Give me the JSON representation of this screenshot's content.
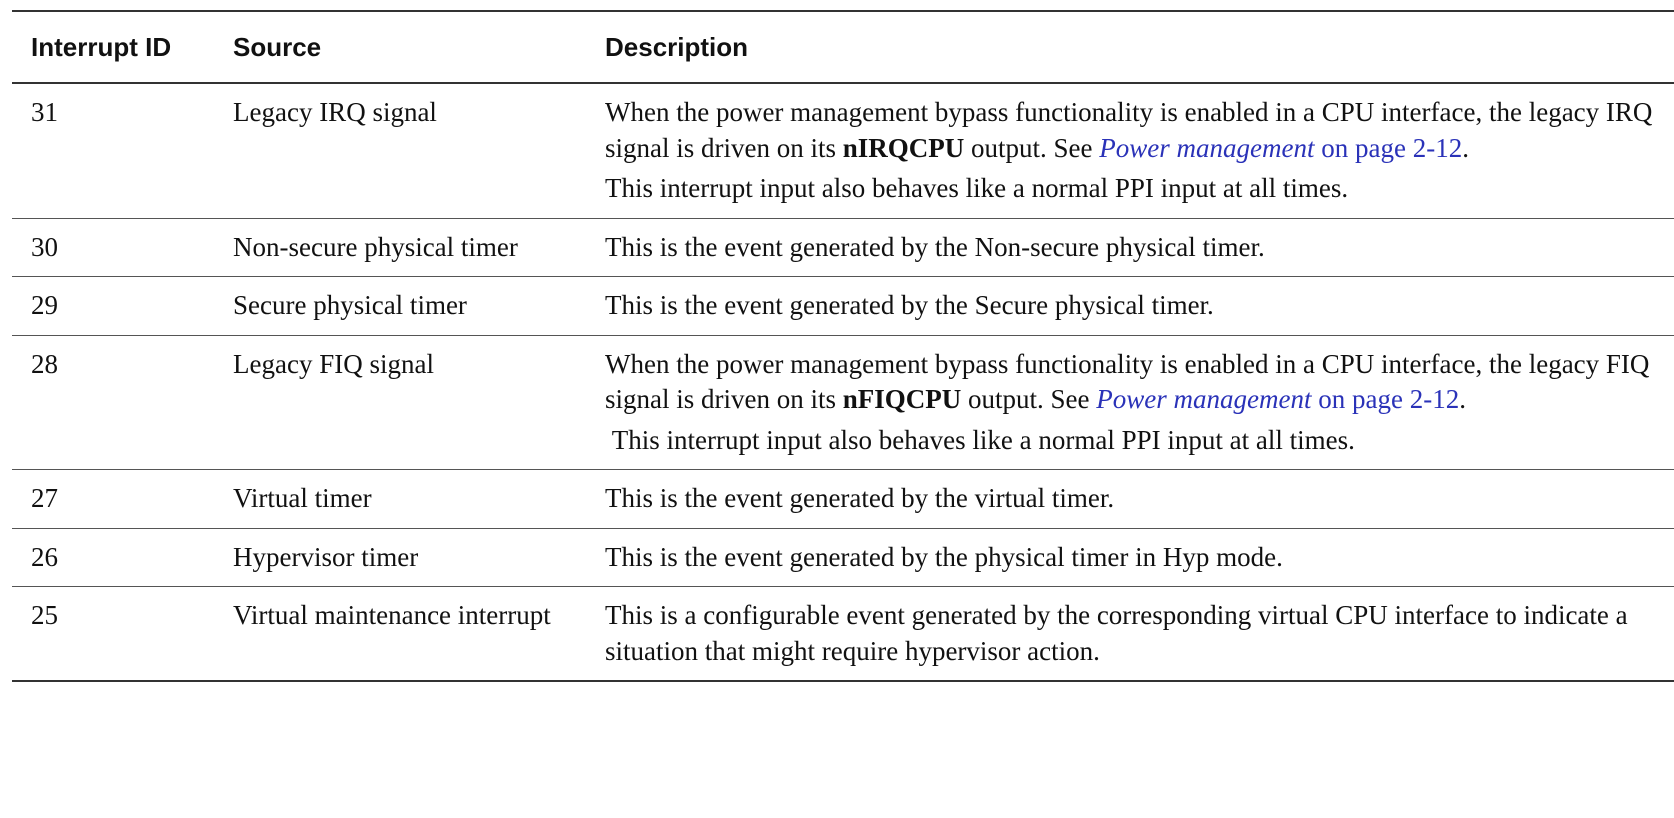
{
  "headers": {
    "id": "Interrupt ID",
    "source": "Source",
    "description": "Description"
  },
  "rows": [
    {
      "id": "31",
      "source": "Legacy IRQ signal",
      "p1_pre": "When the power management bypass functionality is enabled in a CPU interface, the legacy IRQ signal is driven on its ",
      "p1_bold": "nIRQCPU",
      "p1_mid": " output. See ",
      "p1_link_italic": "Power management",
      "p1_link_rest": " on page 2-12",
      "p1_end": ".",
      "p2": "This interrupt input also behaves like a normal PPI input at all times."
    },
    {
      "id": "30",
      "source": "Non-secure physical timer",
      "description": "This is the event generated by the Non-secure physical timer."
    },
    {
      "id": "29",
      "source": "Secure physical timer",
      "description": "This is the event generated by the Secure physical timer."
    },
    {
      "id": "28",
      "source": "Legacy FIQ signal",
      "p1_pre": "When the power management bypass functionality is enabled in a CPU interface, the legacy FIQ signal is driven on its ",
      "p1_bold": "nFIQCPU",
      "p1_mid": " output. See ",
      "p1_link_italic": "Power management",
      "p1_link_rest": " on page 2-12",
      "p1_end": ".",
      "p2": " This interrupt input also behaves like a normal PPI input at all times."
    },
    {
      "id": "27",
      "source": "Virtual timer",
      "description": "This is the event generated by the virtual timer."
    },
    {
      "id": "26",
      "source": "Hypervisor timer",
      "description": "This is the event generated by the physical timer in Hyp mode."
    },
    {
      "id": "25",
      "source": "Virtual maintenance interrupt",
      "description": "This is a configurable event generated by the corresponding virtual CPU interface to indicate a situation that might require hypervisor action."
    }
  ],
  "colors": {
    "link": "#2a32b8",
    "rule": "#333333",
    "text": "#111111"
  }
}
